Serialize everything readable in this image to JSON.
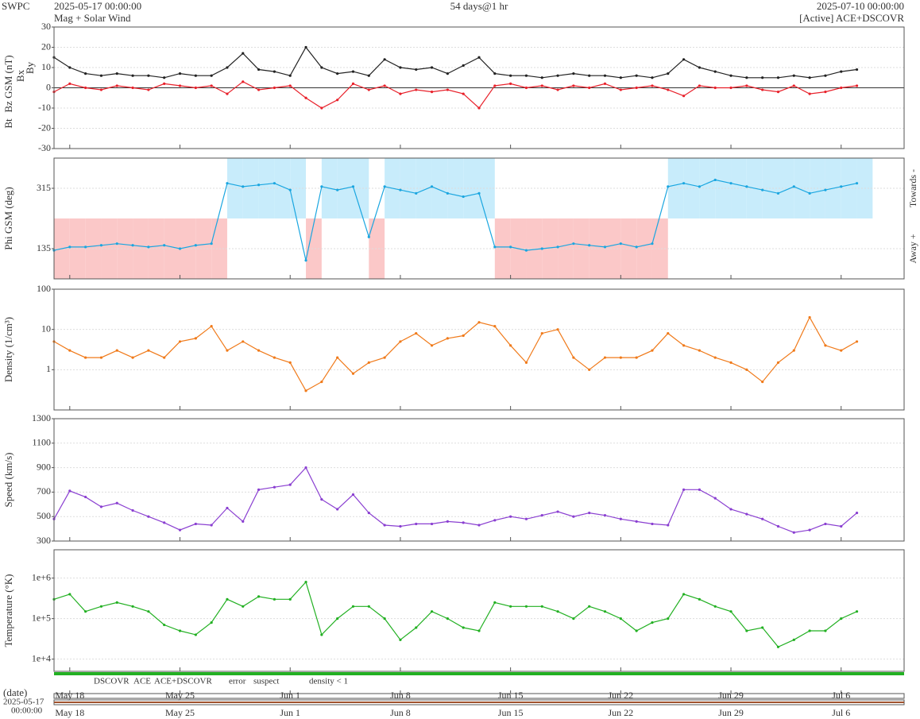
{
  "header": {
    "org": "SWPC",
    "start": "2025-05-17 00:00:00",
    "subtitle": "Mag + Solar Wind",
    "span": "54 days@1 hr",
    "end": "2025-07-10 00:00:00",
    "source": "[Active] ACE+DSCOVR"
  },
  "chart_data": {
    "type": "line",
    "x": [
      "2025-05-17",
      "2025-05-18",
      "2025-05-19",
      "2025-05-20",
      "2025-05-21",
      "2025-05-22",
      "2025-05-23",
      "2025-05-24",
      "2025-05-25",
      "2025-05-26",
      "2025-05-27",
      "2025-05-28",
      "2025-05-29",
      "2025-05-30",
      "2025-05-31",
      "2025-06-01",
      "2025-06-02",
      "2025-06-03",
      "2025-06-04",
      "2025-06-05",
      "2025-06-06",
      "2025-06-07",
      "2025-06-08",
      "2025-06-09",
      "2025-06-10",
      "2025-06-11",
      "2025-06-12",
      "2025-06-13",
      "2025-06-14",
      "2025-06-15",
      "2025-06-16",
      "2025-06-17",
      "2025-06-18",
      "2025-06-19",
      "2025-06-20",
      "2025-06-21",
      "2025-06-22",
      "2025-06-23",
      "2025-06-24",
      "2025-06-25",
      "2025-06-26",
      "2025-06-27",
      "2025-06-28",
      "2025-06-29",
      "2025-06-30",
      "2025-07-01",
      "2025-07-02",
      "2025-07-03",
      "2025-07-04",
      "2025-07-05",
      "2025-07-06",
      "2025-07-07"
    ],
    "xlim": [
      "2025-05-17",
      "2025-07-10"
    ],
    "xticks": [
      {
        "value": "2025-05-18",
        "label": "May 18"
      },
      {
        "value": "2025-05-25",
        "label": "May 25"
      },
      {
        "value": "2025-06-01",
        "label": "Jun 1"
      },
      {
        "value": "2025-06-08",
        "label": "Jun 8"
      },
      {
        "value": "2025-06-15",
        "label": "Jun 15"
      },
      {
        "value": "2025-06-22",
        "label": "Jun 22"
      },
      {
        "value": "2025-06-29",
        "label": "Jun 29"
      },
      {
        "value": "2025-07-06",
        "label": "Jul 6"
      }
    ],
    "panels": [
      {
        "ylim": [
          -30,
          30
        ],
        "yticks": [
          -30,
          -20,
          -10,
          0,
          10,
          20,
          30
        ],
        "grid": true,
        "log": false,
        "extra_labels": [
          {
            "text": "Bx",
            "color": "#9966cc"
          },
          {
            "text": "By",
            "color": "#33bbee"
          }
        ],
        "series": [
          {
            "name": "Bt",
            "color": "#222222",
            "values": [
              15,
              10,
              7,
              6,
              7,
              6,
              6,
              5,
              7,
              6,
              6,
              10,
              17,
              9,
              8,
              6,
              20,
              10,
              7,
              8,
              6,
              14,
              10,
              9,
              10,
              7,
              11,
              15,
              7,
              6,
              6,
              5,
              6,
              7,
              6,
              6,
              5,
              6,
              5,
              7,
              14,
              10,
              8,
              6,
              5,
              5,
              5,
              6,
              5,
              6,
              8,
              9
            ]
          },
          {
            "name": "Bz GSM (nT)",
            "color": "#e8202a",
            "values": [
              -2,
              2,
              0,
              -1,
              1,
              0,
              -1,
              2,
              1,
              0,
              1,
              -3,
              3,
              -1,
              0,
              1,
              -5,
              -10,
              -6,
              2,
              -1,
              1,
              -3,
              -1,
              -2,
              -1,
              -3,
              -10,
              1,
              2,
              0,
              1,
              -1,
              1,
              0,
              2,
              -1,
              0,
              1,
              -1,
              -4,
              1,
              0,
              0,
              1,
              -1,
              -2,
              1,
              -3,
              -2,
              0,
              1
            ]
          }
        ]
      },
      {
        "ylim": [
          45,
          405
        ],
        "yticks": [
          135,
          315
        ],
        "grid": true,
        "log": false,
        "right_labels": [
          "Towards -",
          "Away +"
        ],
        "series": [
          {
            "name": "Phi GSM (deg)",
            "color": "#1aa6e0",
            "values": [
              130,
              140,
              140,
              145,
              150,
              145,
              140,
              145,
              135,
              145,
              150,
              330,
              320,
              325,
              330,
              310,
              100,
              320,
              310,
              320,
              170,
              320,
              310,
              300,
              320,
              300,
              290,
              300,
              140,
              140,
              130,
              135,
              140,
              150,
              145,
              140,
              150,
              140,
              150,
              320,
              330,
              320,
              340,
              330,
              320,
              310,
              300,
              320,
              300,
              310,
              320,
              330
            ]
          }
        ]
      },
      {
        "ylim": [
          0.1,
          100
        ],
        "yticks": [
          1,
          10,
          100
        ],
        "grid": true,
        "log": true,
        "series": [
          {
            "name": "Density (1/cm³)",
            "color": "#f07a1a",
            "values": [
              5,
              3,
              2,
              2,
              3,
              2,
              3,
              2,
              5,
              6,
              12,
              3,
              5,
              3,
              2,
              1.5,
              0.3,
              0.5,
              2,
              0.8,
              1.5,
              2,
              5,
              8,
              4,
              6,
              7,
              15,
              12,
              4,
              1.5,
              8,
              10,
              2,
              1,
              2,
              2,
              2,
              3,
              8,
              4,
              3,
              2,
              1.5,
              1,
              0.5,
              1.5,
              3,
              20,
              4,
              3,
              5
            ]
          }
        ]
      },
      {
        "ylim": [
          300,
          1300
        ],
        "yticks": [
          300,
          500,
          700,
          900,
          1100,
          1300
        ],
        "grid": true,
        "log": false,
        "series": [
          {
            "name": "Speed (km/s)",
            "color": "#8a3fd1",
            "values": [
              480,
              710,
              660,
              580,
              610,
              550,
              500,
              450,
              390,
              440,
              430,
              570,
              460,
              720,
              740,
              760,
              900,
              640,
              560,
              680,
              530,
              430,
              420,
              440,
              440,
              460,
              450,
              430,
              470,
              500,
              480,
              510,
              540,
              500,
              530,
              510,
              480,
              460,
              440,
              430,
              720,
              720,
              650,
              560,
              520,
              480,
              420,
              370,
              390,
              440,
              420,
              530
            ]
          }
        ]
      },
      {
        "ylim": [
          5000,
          5000000
        ],
        "yticks": [
          {
            "value": 10000,
            "label": "1e+4"
          },
          {
            "value": 100000,
            "label": "1e+5"
          },
          {
            "value": 1000000,
            "label": "1e+6"
          }
        ],
        "grid": true,
        "log": true,
        "series": [
          {
            "name": "Temperature (°K)",
            "color": "#22b022",
            "values": [
              300000,
              400000,
              150000,
              200000,
              250000,
              200000,
              150000,
              70000,
              50000,
              40000,
              80000,
              300000,
              200000,
              350000,
              300000,
              300000,
              800000,
              40000,
              100000,
              200000,
              200000,
              100000,
              30000,
              60000,
              150000,
              100000,
              60000,
              50000,
              250000,
              200000,
              200000,
              200000,
              150000,
              100000,
              200000,
              150000,
              100000,
              50000,
              80000,
              100000,
              400000,
              300000,
              200000,
              150000,
              50000,
              60000,
              20000,
              30000,
              50000,
              50000,
              100000,
              150000
            ]
          }
        ]
      }
    ]
  },
  "status_legend": [
    {
      "text": "DSCOVR",
      "color": "#1010c0"
    },
    {
      "text": "ACE",
      "color": "#22b022"
    },
    {
      "text": "ACE+DSCOVR",
      "color": "#e020e0"
    },
    {
      "text": "error",
      "color": "#e02020"
    },
    {
      "text": "suspect",
      "color": "#f0a000"
    },
    {
      "text": "density < 1",
      "color": "#f06010"
    }
  ],
  "footer": {
    "date_label": "(date)",
    "start_date": "2025-05-17",
    "start_time": "00:00:00"
  }
}
